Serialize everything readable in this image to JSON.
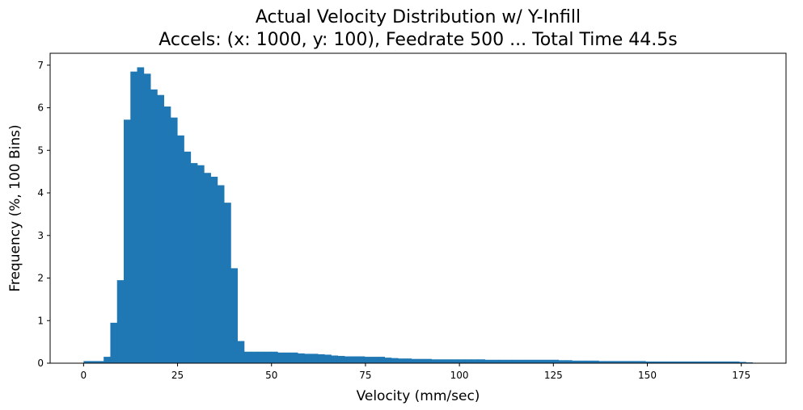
{
  "chart_data": {
    "type": "bar",
    "histogram": true,
    "title_line1": "Actual Velocity Distribution w/ Y-Infill",
    "title_line2": "Accels: (x: 1000, y: 100), Feedrate 500 ... Total Time 44.5s",
    "xlabel": "Velocity (mm/sec)",
    "ylabel": "Frequency (%, 100 Bins)",
    "xlim": [
      -8.9,
      186.9
    ],
    "ylim": [
      0,
      7.28
    ],
    "xticks": [
      0,
      25,
      50,
      75,
      100,
      125,
      150,
      175
    ],
    "yticks": [
      0,
      1,
      2,
      3,
      4,
      5,
      6,
      7
    ],
    "bin_start": 0,
    "bin_width": 1.78,
    "bar_color": "#1f77b4",
    "grid": false,
    "values": [
      0.05,
      0.05,
      0.05,
      0.15,
      0.95,
      1.95,
      5.72,
      6.85,
      6.95,
      6.8,
      6.43,
      6.3,
      6.03,
      5.77,
      5.35,
      4.97,
      4.7,
      4.65,
      4.47,
      4.38,
      4.18,
      3.77,
      2.23,
      0.52,
      0.27,
      0.27,
      0.27,
      0.27,
      0.27,
      0.25,
      0.25,
      0.25,
      0.23,
      0.22,
      0.22,
      0.21,
      0.2,
      0.18,
      0.17,
      0.16,
      0.16,
      0.16,
      0.15,
      0.15,
      0.15,
      0.13,
      0.12,
      0.11,
      0.11,
      0.1,
      0.1,
      0.1,
      0.09,
      0.09,
      0.09,
      0.09,
      0.09,
      0.09,
      0.09,
      0.09,
      0.08,
      0.08,
      0.08,
      0.08,
      0.08,
      0.08,
      0.08,
      0.08,
      0.08,
      0.08,
      0.08,
      0.07,
      0.07,
      0.06,
      0.06,
      0.06,
      0.06,
      0.05,
      0.05,
      0.05,
      0.05,
      0.05,
      0.05,
      0.05,
      0.04,
      0.04,
      0.04,
      0.04,
      0.04,
      0.04,
      0.04,
      0.04,
      0.04,
      0.04,
      0.04,
      0.04,
      0.04,
      0.04,
      0.03,
      0.02
    ]
  }
}
